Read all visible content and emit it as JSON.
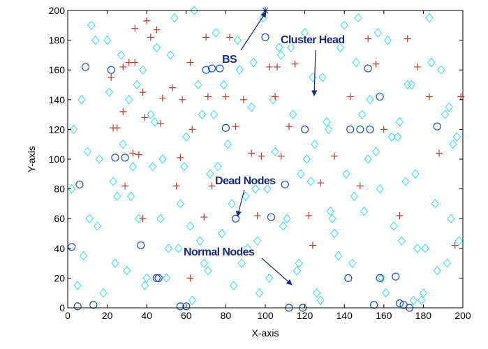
{
  "chart_data": {
    "type": "scatter",
    "xlabel": "X-axis",
    "ylabel": "Y-axis",
    "xlim": [
      0,
      200
    ],
    "ylim": [
      0,
      200
    ],
    "xticks": [
      0,
      20,
      40,
      60,
      80,
      100,
      120,
      140,
      160,
      180,
      200
    ],
    "yticks": [
      0,
      20,
      40,
      60,
      80,
      100,
      120,
      140,
      160,
      180,
      200
    ],
    "grid": false,
    "annotations": [
      "BS",
      "Cluster Head",
      "Dead Nodes",
      "Normal Nodes"
    ],
    "series": [
      {
        "marker": "diamond",
        "color": "#33dde8",
        "x": [
          3,
          8,
          12,
          15,
          18,
          21,
          25,
          27,
          30,
          33,
          36,
          39,
          42,
          45,
          48,
          51,
          54,
          57,
          60,
          63,
          66,
          69,
          72,
          75,
          78,
          81,
          84,
          87,
          90,
          93,
          96,
          99,
          102,
          105,
          108,
          111,
          114,
          117,
          120,
          123,
          126,
          129,
          132,
          135,
          138,
          141,
          144,
          147,
          150,
          153,
          156,
          159,
          162,
          165,
          168,
          171,
          174,
          177,
          180,
          183,
          186,
          189,
          192,
          195,
          198,
          2,
          7,
          11,
          16,
          20,
          24,
          28,
          32,
          35,
          40,
          44,
          47,
          52,
          56,
          59,
          64,
          68,
          71,
          76,
          79,
          83,
          86,
          91,
          94,
          97,
          101,
          104,
          109,
          113,
          116,
          121,
          124,
          128,
          131,
          134,
          137,
          140,
          145,
          149,
          152,
          157,
          161,
          164,
          169,
          172,
          176,
          179,
          184,
          187,
          191,
          194,
          197,
          5,
          14,
          23,
          31,
          43,
          50,
          62,
          74,
          88,
          107,
          118,
          133,
          146,
          158,
          167,
          181,
          193,
          10,
          38,
          67,
          95,
          125,
          175
        ],
        "y": [
          120,
          35,
          190,
          55,
          10,
          145,
          75,
          170,
          25,
          95,
          60,
          15,
          130,
          175,
          100,
          40,
          195,
          70,
          115,
          5,
          150,
          30,
          90,
          185,
          50,
          110,
          15,
          160,
          75,
          135,
          45,
          195,
          20,
          105,
          170,
          60,
          130,
          30,
          185,
          85,
          10,
          155,
          120,
          50,
          175,
          90,
          30,
          195,
          65,
          140,
          105,
          20,
          180,
          55,
          125,
          85,
          150,
          40,
          10,
          195,
          70,
          160,
          30,
          110,
          45,
          80,
          140,
          60,
          100,
          180,
          30,
          110,
          75,
          150,
          20,
          125,
          60,
          170,
          40,
          95,
          200,
          130,
          25,
          95,
          150,
          70,
          180,
          40,
          165,
          10,
          80,
          140,
          55,
          175,
          25,
          100,
          155,
          5,
          125,
          60,
          35,
          190,
          75,
          130,
          100,
          185,
          10,
          115,
          45,
          150,
          90,
          5,
          165,
          25,
          130,
          60,
          115,
          15,
          180,
          85,
          140,
          95,
          20,
          55,
          130,
          30,
          175,
          90,
          65,
          165,
          80,
          115,
          40,
          135,
          105,
          160,
          45,
          80,
          110,
          5
        ]
      },
      {
        "marker": "circle",
        "color": "#1a4fc4",
        "x": [
          2,
          5,
          6,
          9,
          13,
          22,
          24,
          29,
          37,
          45,
          46,
          57,
          60,
          73,
          70,
          77,
          80,
          85,
          100,
          103,
          110,
          112,
          119,
          120,
          142,
          143,
          148,
          152,
          153,
          155,
          158,
          158,
          166,
          168,
          170,
          173,
          187
        ],
        "y": [
          41,
          1,
          83,
          162,
          2,
          160,
          101,
          101,
          42,
          20,
          20,
          1,
          1,
          161,
          160,
          161,
          121,
          60,
          182,
          61,
          83,
          0,
          0,
          120,
          20,
          120,
          120,
          161,
          120,
          2,
          20,
          142,
          21,
          3,
          2,
          0,
          122
        ]
      },
      {
        "marker": "plus",
        "color": "#c0392b",
        "x": [
          22,
          23,
          25,
          28,
          28,
          29,
          31,
          34,
          33,
          34,
          36,
          38,
          39,
          38,
          40,
          42,
          45,
          48,
          47,
          53,
          55,
          57,
          58,
          62,
          63,
          62,
          70,
          69,
          73,
          71,
          80,
          82,
          85,
          89,
          93,
          96,
          98,
          102,
          106,
          105,
          108,
          112,
          115,
          122,
          124,
          128,
          131,
          135,
          143,
          148,
          152,
          156,
          160,
          168,
          172,
          177,
          183,
          188,
          196,
          199
        ],
        "y": [
          155,
          121,
          121,
          162,
          132,
          82,
          165,
          165,
          104,
          188,
          103,
          145,
          128,
          60,
          193,
          182,
          187,
          141,
          124,
          148,
          82,
          101,
          140,
          165,
          120,
          20,
          182,
          61,
          82,
          142,
          142,
          182,
          122,
          140,
          104,
          62,
          102,
          162,
          162,
          142,
          102,
          122,
          164,
          62,
          42,
          84,
          182,
          102,
          142,
          82,
          181,
          164,
          120,
          62,
          181,
          162,
          142,
          104,
          42,
          142
        ]
      },
      {
        "marker": "star",
        "color": "#1a4fc4",
        "x": [
          100
        ],
        "y": [
          200
        ]
      }
    ]
  }
}
